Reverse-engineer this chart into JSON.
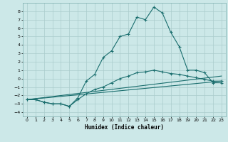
{
  "xlabel": "Humidex (Indice chaleur)",
  "background_color": "#cce8e8",
  "line_color": "#1a6e6e",
  "grid_color": "#aacccc",
  "xlim": [
    -0.5,
    23.5
  ],
  "ylim": [
    -4.5,
    9.0
  ],
  "xticks": [
    0,
    1,
    2,
    3,
    4,
    5,
    6,
    7,
    8,
    9,
    10,
    11,
    12,
    13,
    14,
    15,
    16,
    17,
    18,
    19,
    20,
    21,
    22,
    23
  ],
  "yticks": [
    -4,
    -3,
    -2,
    -1,
    0,
    1,
    2,
    3,
    4,
    5,
    6,
    7,
    8
  ],
  "line1_x": [
    0,
    1,
    2,
    3,
    4,
    5,
    6,
    7,
    8,
    9,
    10,
    11,
    12,
    13,
    14,
    15,
    16,
    17,
    18,
    19,
    20,
    21,
    22,
    23
  ],
  "line1_y": [
    -2.5,
    -2.5,
    -2.8,
    -3.0,
    -3.0,
    -3.3,
    -2.3,
    -0.3,
    0.5,
    2.5,
    3.3,
    5.0,
    5.3,
    7.3,
    7.0,
    8.5,
    7.8,
    5.5,
    3.8,
    1.0,
    1.0,
    0.7,
    -0.5,
    -0.5
  ],
  "line2_x": [
    0,
    1,
    2,
    3,
    4,
    5,
    6,
    7,
    8,
    9,
    10,
    11,
    12,
    13,
    14,
    15,
    16,
    17,
    18,
    19,
    20,
    21,
    22,
    23
  ],
  "line2_y": [
    -2.5,
    -2.5,
    -2.8,
    -3.0,
    -3.0,
    -3.3,
    -2.5,
    -1.8,
    -1.3,
    -1.0,
    -0.5,
    0.0,
    0.3,
    0.7,
    0.8,
    1.0,
    0.8,
    0.6,
    0.5,
    0.3,
    0.1,
    -0.1,
    -0.3,
    -0.3
  ],
  "line3_x": [
    0,
    23
  ],
  "line3_y": [
    -2.5,
    -0.3
  ],
  "line4_x": [
    0,
    23
  ],
  "line4_y": [
    -2.5,
    0.3
  ]
}
